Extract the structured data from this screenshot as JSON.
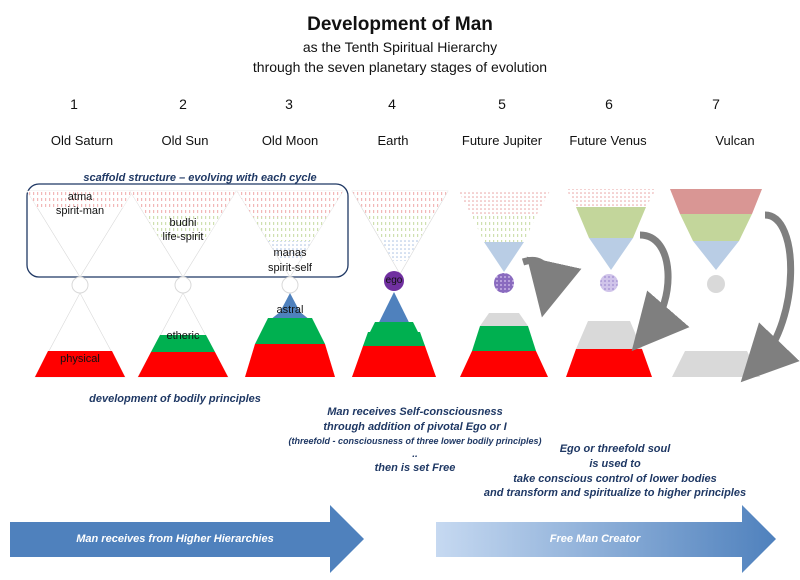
{
  "title": "Development of Man",
  "subtitle_1": "as the Tenth Spiritual Hierarchy",
  "subtitle_2": "through the seven planetary stages of evolution",
  "stages": [
    {
      "num": "1",
      "name": "Old Saturn"
    },
    {
      "num": "2",
      "name": "Old Sun"
    },
    {
      "num": "3",
      "name": "Old Moon"
    },
    {
      "num": "4",
      "name": "Earth"
    },
    {
      "num": "5",
      "name": "Future Jupiter"
    },
    {
      "num": "6",
      "name": "Future Venus"
    },
    {
      "num": "7",
      "name": "Vulcan"
    }
  ],
  "scaffold_label": "scaffold structure – evolving with each cycle",
  "labels": {
    "atma": "atma",
    "spirit_man": "spirit-man",
    "budhi": "budhi",
    "life_spirit": "life-spirit",
    "manas": "manas",
    "spirit_self": "spirit-self",
    "ego": "ego",
    "physical": "physical",
    "etheric": "etheric",
    "astral": "astral"
  },
  "notes": {
    "bodily": "development of bodily principles",
    "self_1": "Man receives Self-consciousness",
    "self_2": "through addition of pivotal Ego or I",
    "self_3": "(threefold - consciousness of three lower bodily principles)",
    "self_4": "..",
    "self_5": "then is set Free",
    "ego_1": "Ego or threefold soul",
    "ego_2": "is used to",
    "ego_3": "take conscious control of lower bodies",
    "ego_4": "and transform and spiritualize to higher principles"
  },
  "arrows": {
    "left": "Man receives from Higher Hierarchies",
    "right": "Free Man Creator"
  },
  "colors": {
    "red": "#ff0000",
    "green": "#00b050",
    "blue": "#4f81bd",
    "purple": "#7030a0",
    "pale_red": "#e6b9b8",
    "pale_green": "#c3d69b",
    "pale_blue": "#b9cde5",
    "grey": "#d9d9d9",
    "navy": "#1f3864"
  }
}
